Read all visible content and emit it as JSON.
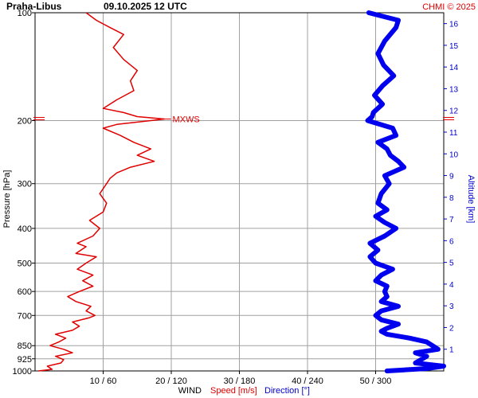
{
  "header": {
    "station": "Praha-Libus",
    "datetime": "09.10.2025 12 UTC",
    "copyright": "CHMI © 2025"
  },
  "colors": {
    "speed": "#e00000",
    "direction": "#0000ee",
    "grid": "#a0a0a0",
    "axis_right": "#0000cc"
  },
  "chart_data": {
    "type": "line",
    "y_axis": {
      "label": "Pressure [hPa]",
      "scale": "log",
      "range": [
        1000,
        100
      ],
      "ticks": [
        100,
        200,
        300,
        400,
        500,
        600,
        700,
        850,
        925,
        1000
      ]
    },
    "y2_axis": {
      "label": "Altitude [km]",
      "range": [
        0,
        16.5
      ],
      "ticks": [
        1,
        2,
        3,
        4,
        5,
        6,
        7,
        8,
        9,
        10,
        11,
        12,
        13,
        14,
        15,
        16
      ]
    },
    "x_axis": {
      "label": "WIND",
      "speed_range": [
        0,
        60
      ],
      "direction_range": [
        0,
        360
      ],
      "ticks": [
        {
          "speed": 10,
          "dir": 60,
          "text": "10 / 60"
        },
        {
          "speed": 20,
          "dir": 120,
          "text": "20 / 120"
        },
        {
          "speed": 30,
          "dir": 180,
          "text": "30 / 180"
        },
        {
          "speed": 40,
          "dir": 240,
          "text": "40 / 240"
        },
        {
          "speed": 50,
          "dir": 300,
          "text": "50 / 300"
        }
      ]
    },
    "legend": {
      "wind": "WIND",
      "speed": "Speed [m/s]",
      "direction": "Direction [°]"
    },
    "annotations": [
      {
        "text": "MXWS",
        "pressure": 198,
        "speed": 19
      }
    ],
    "series": [
      {
        "name": "Speed [m/s]",
        "unit": "m/s",
        "points": [
          [
            1000,
            0.5
          ],
          [
            990,
            2.5
          ],
          [
            970,
            1.8
          ],
          [
            950,
            3.8
          ],
          [
            930,
            4.2
          ],
          [
            910,
            3.0
          ],
          [
            890,
            5.5
          ],
          [
            870,
            4.2
          ],
          [
            850,
            2.2
          ],
          [
            830,
            3.5
          ],
          [
            810,
            4.5
          ],
          [
            790,
            3.0
          ],
          [
            770,
            5.5
          ],
          [
            750,
            6.5
          ],
          [
            730,
            5.5
          ],
          [
            710,
            8.0
          ],
          [
            700,
            8.8
          ],
          [
            680,
            7.5
          ],
          [
            660,
            8.2
          ],
          [
            640,
            6.0
          ],
          [
            620,
            4.8
          ],
          [
            600,
            6.5
          ],
          [
            580,
            8.5
          ],
          [
            560,
            7.0
          ],
          [
            540,
            8.5
          ],
          [
            520,
            6.2
          ],
          [
            500,
            7.5
          ],
          [
            480,
            9.0
          ],
          [
            470,
            6.0
          ],
          [
            450,
            7.5
          ],
          [
            440,
            6.2
          ],
          [
            420,
            8.5
          ],
          [
            400,
            9.5
          ],
          [
            380,
            8.0
          ],
          [
            360,
            10.0
          ],
          [
            340,
            10.5
          ],
          [
            320,
            9.5
          ],
          [
            300,
            10.5
          ],
          [
            290,
            11.0
          ],
          [
            280,
            12.0
          ],
          [
            270,
            14.0
          ],
          [
            260,
            17.5
          ],
          [
            250,
            15.0
          ],
          [
            240,
            17.0
          ],
          [
            230,
            14.5
          ],
          [
            220,
            12.5
          ],
          [
            210,
            10.0
          ],
          [
            205,
            12.0
          ],
          [
            200,
            17.0
          ],
          [
            198,
            19.0
          ],
          [
            195,
            15.0
          ],
          [
            190,
            13.0
          ],
          [
            185,
            10.0
          ],
          [
            175,
            12.0
          ],
          [
            165,
            14.5
          ],
          [
            155,
            14.0
          ],
          [
            145,
            15.0
          ],
          [
            135,
            13.0
          ],
          [
            125,
            11.5
          ],
          [
            115,
            13.0
          ],
          [
            110,
            11.0
          ],
          [
            105,
            9.0
          ],
          [
            100,
            7.5
          ]
        ]
      },
      {
        "name": "Direction [°]",
        "unit": "deg",
        "points": [
          [
            1000,
            310
          ],
          [
            985,
            345
          ],
          [
            970,
            360
          ],
          [
            950,
            335
          ],
          [
            930,
            340
          ],
          [
            910,
            345
          ],
          [
            890,
            335
          ],
          [
            870,
            355
          ],
          [
            850,
            350
          ],
          [
            830,
            345
          ],
          [
            810,
            330
          ],
          [
            790,
            310
          ],
          [
            775,
            305
          ],
          [
            760,
            310
          ],
          [
            740,
            320
          ],
          [
            720,
            305
          ],
          [
            700,
            300
          ],
          [
            680,
            305
          ],
          [
            660,
            320
          ],
          [
            640,
            305
          ],
          [
            620,
            310
          ],
          [
            600,
            308
          ],
          [
            580,
            310
          ],
          [
            560,
            300
          ],
          [
            540,
            305
          ],
          [
            520,
            315
          ],
          [
            500,
            300
          ],
          [
            480,
            295
          ],
          [
            460,
            302
          ],
          [
            440,
            295
          ],
          [
            420,
            308
          ],
          [
            400,
            318
          ],
          [
            385,
            308
          ],
          [
            370,
            300
          ],
          [
            355,
            310
          ],
          [
            340,
            302
          ],
          [
            320,
            305
          ],
          [
            300,
            312
          ],
          [
            285,
            308
          ],
          [
            270,
            325
          ],
          [
            260,
            320
          ],
          [
            250,
            313
          ],
          [
            240,
            310
          ],
          [
            230,
            302
          ],
          [
            220,
            318
          ],
          [
            210,
            315
          ],
          [
            200,
            293
          ],
          [
            195,
            297
          ],
          [
            190,
            298
          ],
          [
            180,
            306
          ],
          [
            170,
            299
          ],
          [
            160,
            306
          ],
          [
            150,
            316
          ],
          [
            140,
            307
          ],
          [
            130,
            302
          ],
          [
            120,
            308
          ],
          [
            110,
            318
          ],
          [
            105,
            320
          ],
          [
            100,
            294
          ]
        ]
      }
    ]
  }
}
